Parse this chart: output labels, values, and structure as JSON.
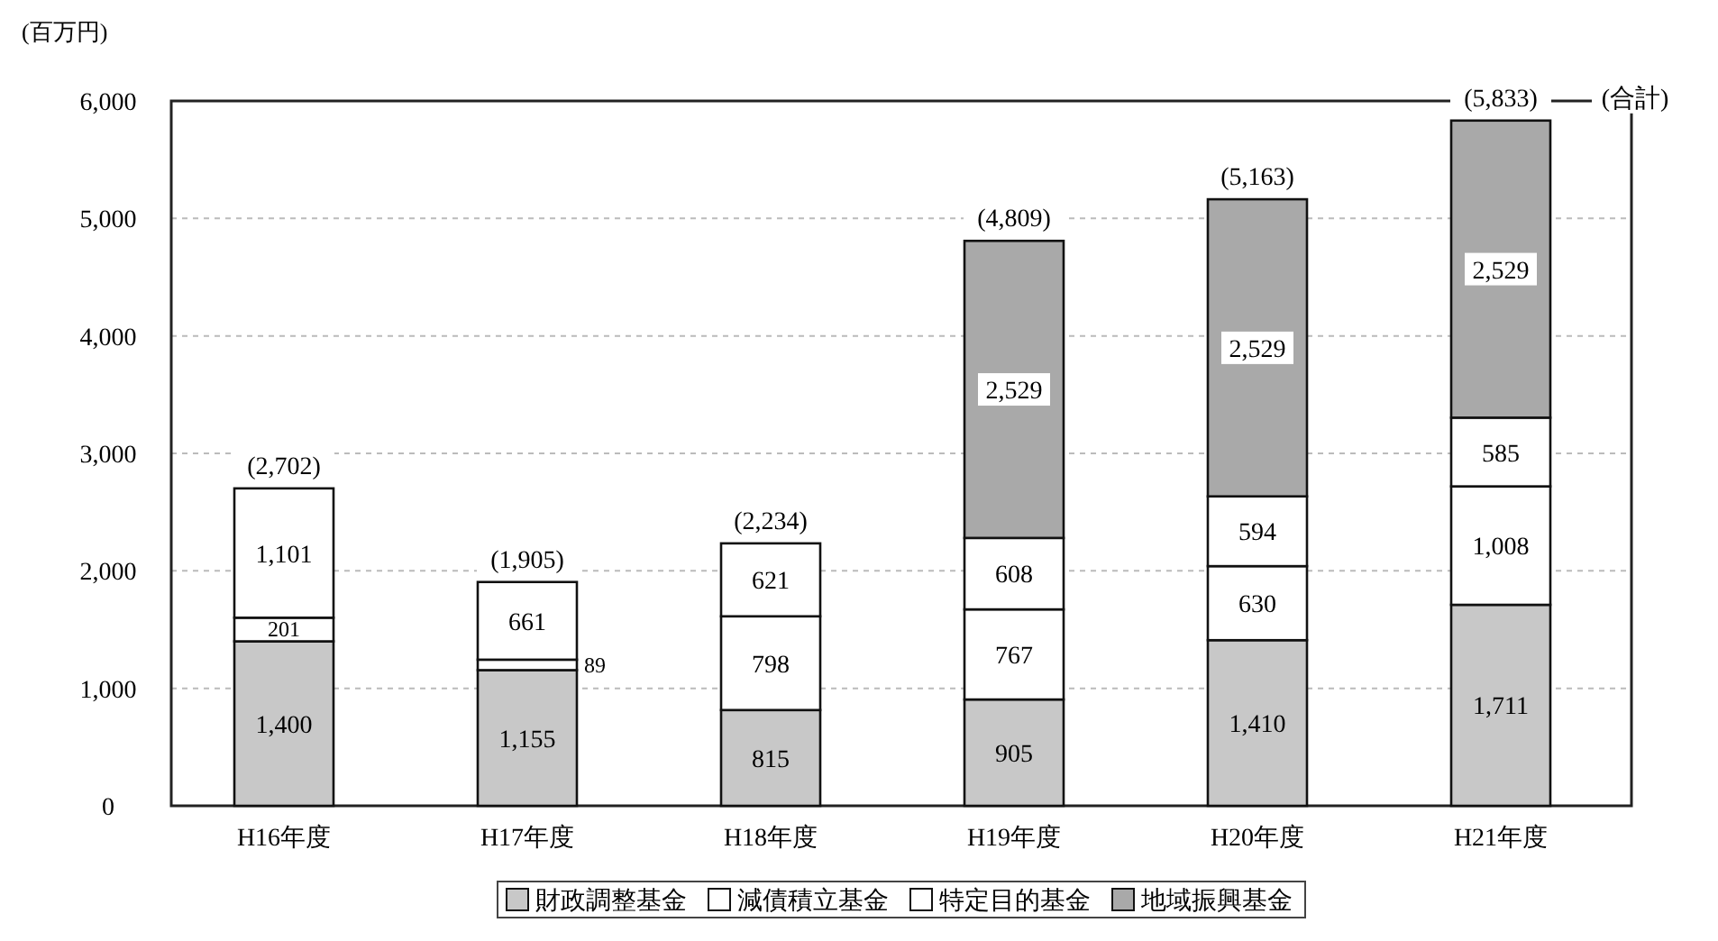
{
  "chart_data": {
    "type": "bar",
    "stacked": true,
    "ylabel": "(百万円)",
    "categories": [
      "H16年度",
      "H17年度",
      "H18年度",
      "H19年度",
      "H20年度",
      "H21年度"
    ],
    "series": [
      {
        "name": "財政調整基金",
        "color": "#c8c8c8",
        "values": [
          1400,
          1155,
          815,
          905,
          1410,
          1711
        ],
        "value_labels": [
          "1,400",
          "1,155",
          "815",
          "905",
          "1,410",
          "1,711"
        ]
      },
      {
        "name": "減債積立基金",
        "color": "#ffffff",
        "values": [
          201,
          89,
          798,
          767,
          630,
          1008
        ],
        "value_labels": [
          "201",
          "89",
          "798",
          "767",
          "630",
          "1,008"
        ]
      },
      {
        "name": "特定目的基金",
        "color": "#ffffff",
        "values": [
          1101,
          661,
          621,
          608,
          594,
          585
        ],
        "value_labels": [
          "1,101",
          "661",
          "621",
          "608",
          "594",
          "585"
        ]
      },
      {
        "name": "地域振興基金",
        "color": "#a9a9a9",
        "values": [
          null,
          null,
          null,
          2529,
          2529,
          2529
        ],
        "value_labels": [
          null,
          null,
          null,
          "2,529",
          "2,529",
          "2,529"
        ]
      }
    ],
    "totals": [
      "(2,702)",
      "(1,905)",
      "(2,234)",
      "(4,809)",
      "(5,163)",
      "(5,833)"
    ],
    "annotations": [
      "(合計)"
    ],
    "ylim": [
      0,
      6000
    ],
    "yticks": [
      {
        "value": 0,
        "label": "0"
      },
      {
        "value": 1000,
        "label": "1,000"
      },
      {
        "value": 2000,
        "label": "2,000"
      },
      {
        "value": 3000,
        "label": "3,000"
      },
      {
        "value": 4000,
        "label": "4,000"
      },
      {
        "value": 5000,
        "label": "5,000"
      },
      {
        "value": 6000,
        "label": "6,000"
      }
    ],
    "grid": "y",
    "legend": "bottom"
  }
}
